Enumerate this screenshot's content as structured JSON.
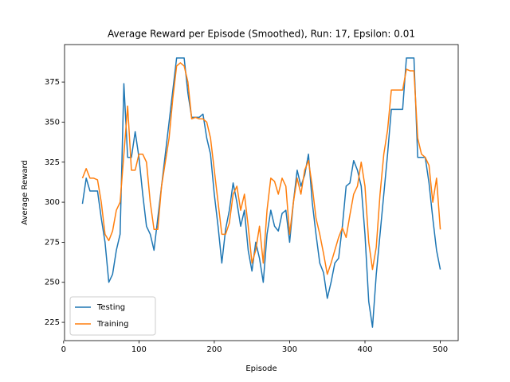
{
  "chart_data": {
    "type": "line",
    "title": "Average Reward per Episode (Smoothed), Run: 17, Epsilon: 0.01",
    "x_label": "Episode",
    "y_label": "Average Reward",
    "x": [
      25,
      30,
      35,
      40,
      45,
      50,
      55,
      60,
      65,
      70,
      75,
      80,
      85,
      90,
      95,
      100,
      105,
      110,
      115,
      120,
      125,
      130,
      135,
      140,
      145,
      150,
      155,
      160,
      165,
      170,
      175,
      180,
      185,
      190,
      195,
      200,
      205,
      210,
      215,
      220,
      225,
      230,
      235,
      240,
      245,
      250,
      255,
      260,
      265,
      270,
      275,
      280,
      285,
      290,
      295,
      300,
      305,
      310,
      315,
      320,
      325,
      330,
      335,
      340,
      345,
      350,
      355,
      360,
      365,
      370,
      375,
      380,
      385,
      390,
      395,
      400,
      405,
      410,
      415,
      420,
      425,
      430,
      435,
      440,
      445,
      450,
      455,
      460,
      465,
      470,
      475,
      480,
      485,
      490,
      495,
      500
    ],
    "series": [
      {
        "name": "Testing",
        "color": "#1f77b4",
        "values": [
          299,
          315,
          307,
          307,
          307,
          290,
          275,
          250,
          255,
          270,
          280,
          374,
          328,
          328,
          344,
          328,
          305,
          285,
          280,
          270,
          290,
          310,
          330,
          350,
          370,
          390,
          390,
          390,
          368,
          353,
          353,
          353,
          355,
          340,
          330,
          305,
          285,
          262,
          283,
          295,
          312,
          300,
          285,
          295,
          270,
          257,
          275,
          265,
          250,
          280,
          295,
          285,
          282,
          293,
          295,
          275,
          300,
          320,
          310,
          317,
          330,
          300,
          280,
          262,
          256,
          240,
          250,
          262,
          265,
          285,
          310,
          312,
          326,
          320,
          310,
          280,
          238,
          222,
          255,
          280,
          305,
          330,
          358,
          358,
          358,
          358,
          390,
          390,
          390,
          328,
          328,
          328,
          312,
          290,
          270,
          258
        ]
      },
      {
        "name": "Training",
        "color": "#ff7f0e",
        "values": [
          315,
          321,
          315,
          315,
          314,
          300,
          280,
          276,
          282,
          295,
          300,
          330,
          360,
          320,
          320,
          330,
          330,
          325,
          300,
          283,
          283,
          310,
          325,
          340,
          365,
          385,
          387,
          385,
          375,
          352,
          353,
          352,
          352,
          350,
          340,
          320,
          300,
          280,
          280,
          287,
          305,
          310,
          295,
          305,
          285,
          262,
          270,
          285,
          262,
          295,
          315,
          313,
          305,
          315,
          310,
          280,
          300,
          315,
          305,
          320,
          326,
          310,
          290,
          280,
          268,
          255,
          262,
          270,
          278,
          284,
          278,
          292,
          305,
          310,
          325,
          310,
          275,
          258,
          272,
          305,
          330,
          345,
          370,
          370,
          370,
          370,
          383,
          382,
          382,
          340,
          330,
          328,
          323,
          300,
          315,
          283
        ]
      }
    ],
    "xlim": [
      1.25,
      523.75
    ],
    "ylim": [
      213.6,
      398.4
    ],
    "xticks": [
      0,
      100,
      200,
      300,
      400,
      500
    ],
    "yticks": [
      225,
      250,
      275,
      300,
      325,
      350,
      375
    ],
    "grid": false,
    "legend": "lower left"
  }
}
